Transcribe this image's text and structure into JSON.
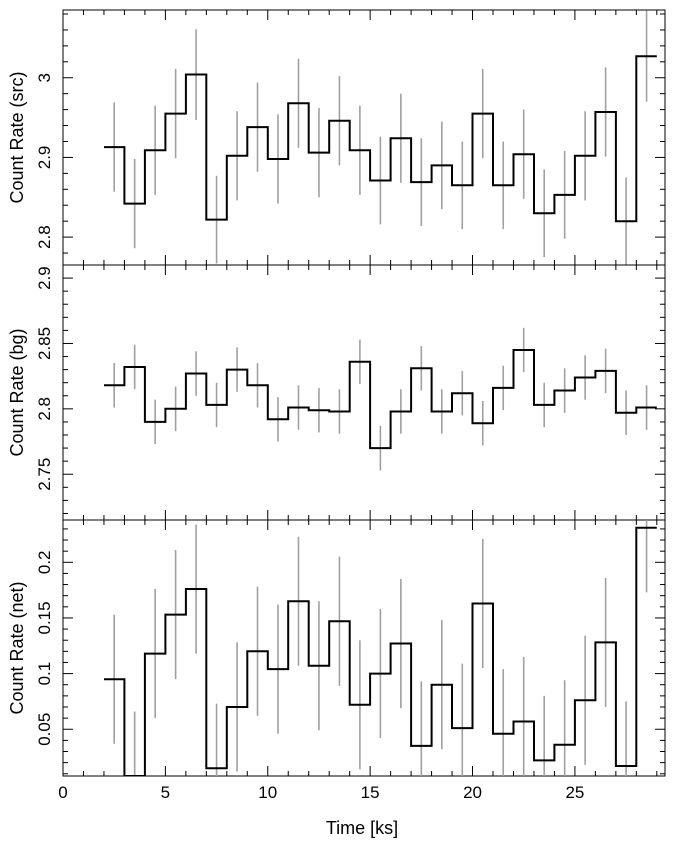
{
  "chart_data": [
    {
      "type": "line",
      "step": true,
      "ylabel": "Count Rate (src)",
      "xlabel": "",
      "xlim": [
        0,
        29.4
      ],
      "ylim": [
        2.765,
        3.085
      ],
      "yticks": [
        2.8,
        2.9,
        3.0
      ],
      "ytick_labels": [
        "2.8",
        "2.9",
        "3"
      ],
      "x": [
        2.5,
        3.5,
        4.5,
        5.5,
        6.5,
        7.5,
        8.5,
        9.5,
        10.5,
        11.5,
        12.5,
        13.5,
        14.5,
        15.5,
        16.5,
        17.5,
        18.5,
        19.5,
        20.5,
        21.5,
        22.5,
        23.5,
        24.5,
        25.5,
        26.5,
        27.5,
        28.5
      ],
      "y": [
        2.913,
        2.842,
        2.909,
        2.955,
        3.004,
        2.822,
        2.902,
        2.938,
        2.898,
        2.968,
        2.906,
        2.946,
        2.909,
        2.871,
        2.924,
        2.869,
        2.89,
        2.865,
        2.955,
        2.865,
        2.904,
        2.83,
        2.853,
        2.902,
        2.957,
        2.82,
        3.027
      ],
      "yerr": [
        0.056,
        0.056,
        0.056,
        0.056,
        0.057,
        0.055,
        0.056,
        0.056,
        0.056,
        0.056,
        0.056,
        0.056,
        0.056,
        0.055,
        0.056,
        0.055,
        0.055,
        0.055,
        0.056,
        0.055,
        0.056,
        0.055,
        0.055,
        0.056,
        0.056,
        0.055,
        0.057
      ]
    },
    {
      "type": "line",
      "step": true,
      "ylabel": "Count Rate (bg)",
      "xlabel": "",
      "xlim": [
        0,
        29.4
      ],
      "ylim": [
        2.715,
        2.91
      ],
      "yticks": [
        2.75,
        2.8,
        2.85,
        2.9
      ],
      "ytick_labels": [
        "2.75",
        "2.8",
        "2.85",
        "2.9"
      ],
      "x": [
        2.5,
        3.5,
        4.5,
        5.5,
        6.5,
        7.5,
        8.5,
        9.5,
        10.5,
        11.5,
        12.5,
        13.5,
        14.5,
        15.5,
        16.5,
        17.5,
        18.5,
        19.5,
        20.5,
        21.5,
        22.5,
        23.5,
        24.5,
        25.5,
        26.5,
        27.5,
        28.5
      ],
      "y": [
        2.818,
        2.832,
        2.79,
        2.8,
        2.827,
        2.803,
        2.83,
        2.818,
        2.792,
        2.801,
        2.799,
        2.798,
        2.836,
        2.77,
        2.798,
        2.831,
        2.798,
        2.812,
        2.789,
        2.816,
        2.845,
        2.803,
        2.814,
        2.824,
        2.829,
        2.797,
        2.801
      ],
      "yerr": [
        0.017,
        0.017,
        0.017,
        0.017,
        0.017,
        0.017,
        0.017,
        0.017,
        0.017,
        0.017,
        0.017,
        0.017,
        0.017,
        0.017,
        0.017,
        0.017,
        0.017,
        0.017,
        0.017,
        0.017,
        0.017,
        0.017,
        0.017,
        0.017,
        0.017,
        0.017,
        0.017
      ]
    },
    {
      "type": "line",
      "step": true,
      "ylabel": "Count Rate (net)",
      "xlabel": "Time [ks]",
      "xlim": [
        0,
        29.4
      ],
      "ylim": [
        0.008,
        0.238
      ],
      "yticks": [
        0.05,
        0.1,
        0.15,
        0.2
      ],
      "ytick_labels": [
        "0.05",
        "0.1",
        "0.15",
        "0.2"
      ],
      "xticks": [
        0,
        5,
        10,
        15,
        20,
        25
      ],
      "xtick_labels": [
        "0",
        "5",
        "10",
        "15",
        "20",
        "25"
      ],
      "x": [
        2.5,
        3.5,
        4.5,
        5.5,
        6.5,
        7.5,
        8.5,
        9.5,
        10.5,
        11.5,
        12.5,
        13.5,
        14.5,
        15.5,
        16.5,
        17.5,
        18.5,
        19.5,
        20.5,
        21.5,
        22.5,
        23.5,
        24.5,
        25.5,
        26.5,
        27.5,
        28.5
      ],
      "y": [
        0.095,
        0.008,
        0.118,
        0.153,
        0.176,
        0.015,
        0.07,
        0.12,
        0.104,
        0.165,
        0.107,
        0.147,
        0.072,
        0.1,
        0.127,
        0.035,
        0.09,
        0.051,
        0.163,
        0.046,
        0.057,
        0.022,
        0.036,
        0.076,
        0.128,
        0.017,
        0.231
      ],
      "yerr": [
        0.058,
        0.058,
        0.058,
        0.058,
        0.058,
        0.058,
        0.058,
        0.058,
        0.058,
        0.058,
        0.058,
        0.058,
        0.058,
        0.058,
        0.058,
        0.058,
        0.058,
        0.058,
        0.058,
        0.058,
        0.058,
        0.058,
        0.058,
        0.058,
        0.058,
        0.058,
        0.058
      ]
    }
  ]
}
